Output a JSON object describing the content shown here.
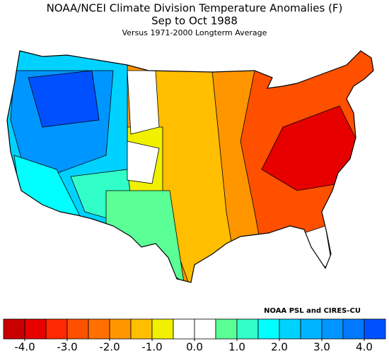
{
  "title": "NOAA/NCEI Climate Division Temperature Anomalies (F)",
  "subtitle": "Sep to Oct 1988",
  "note": "Versus 1971-2000 Longterm Average",
  "credit": "NOAA PSL and CIRES-CU",
  "colorbar": {
    "lim": [
      -4.5,
      4.5
    ],
    "colors": [
      "#c80000",
      "#e60000",
      "#ff2800",
      "#ff5000",
      "#ff7000",
      "#ff9600",
      "#ffbe00",
      "#f0f000",
      "#ffffff",
      "#ffffff",
      "#5aff96",
      "#32ffc8",
      "#00ffff",
      "#00d2ff",
      "#00b4ff",
      "#0096ff",
      "#0078ff",
      "#0050ff"
    ],
    "ticks": [
      {
        "value": -4,
        "label": "-4.0"
      },
      {
        "value": -3,
        "label": "-3.0"
      },
      {
        "value": -2,
        "label": "-2.0"
      },
      {
        "value": -1,
        "label": "-1.0"
      },
      {
        "value": 0,
        "label": "0.0"
      },
      {
        "value": 1,
        "label": "1.0"
      },
      {
        "value": 2,
        "label": "2.0"
      },
      {
        "value": 3,
        "label": "3.0"
      },
      {
        "value": 4,
        "label": "4.0"
      }
    ]
  }
}
